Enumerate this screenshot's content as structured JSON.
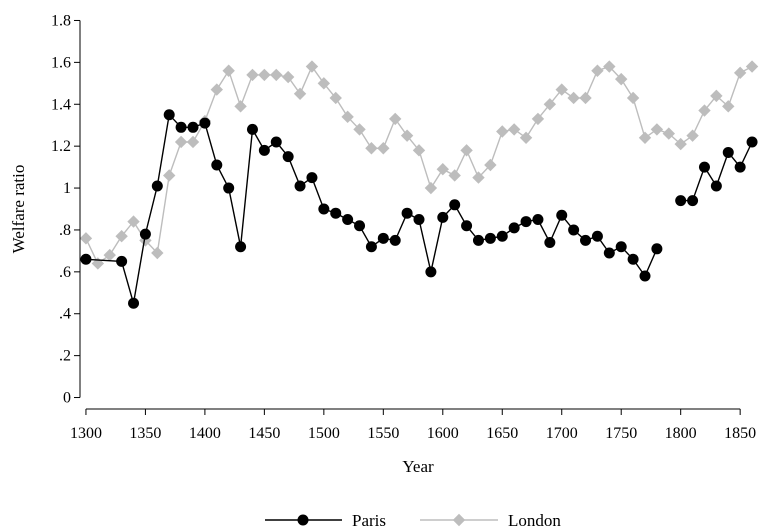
{
  "chart_data": {
    "type": "line",
    "title": "",
    "xlabel": "Year",
    "ylabel": "Welfare ratio",
    "xlim": [
      1295,
      1865
    ],
    "ylim": [
      -0.05,
      1.85
    ],
    "x_ticks": [
      1300,
      1350,
      1400,
      1450,
      1500,
      1550,
      1600,
      1650,
      1700,
      1750,
      1800,
      1850
    ],
    "x_tick_labels": [
      "1300",
      "1350",
      "1400",
      "1450",
      "1500",
      "1550",
      "1600",
      "1650",
      "1700",
      "1750",
      "1800",
      "1850"
    ],
    "y_ticks": [
      0,
      0.2,
      0.4,
      0.6,
      0.8,
      1.0,
      1.2,
      1.4,
      1.6,
      1.8
    ],
    "y_tick_labels": [
      "0",
      ".2",
      ".4",
      ".6",
      ".8",
      "1",
      "1.2",
      "1.4",
      "1.6",
      "1.8"
    ],
    "grid": false,
    "legend_position": "bottom",
    "series": [
      {
        "name": "Paris",
        "color": "#000000",
        "marker": "circle",
        "points": [
          [
            1300,
            0.66
          ],
          [
            1330,
            0.65
          ],
          [
            1340,
            0.45
          ],
          [
            1350,
            0.78
          ],
          [
            1360,
            1.01
          ],
          [
            1370,
            1.35
          ],
          [
            1380,
            1.29
          ],
          [
            1390,
            1.29
          ],
          [
            1400,
            1.31
          ],
          [
            1410,
            1.11
          ],
          [
            1420,
            1.0
          ],
          [
            1430,
            0.72
          ],
          [
            1440,
            1.28
          ],
          [
            1450,
            1.18
          ],
          [
            1460,
            1.22
          ],
          [
            1470,
            1.15
          ],
          [
            1480,
            1.01
          ],
          [
            1490,
            1.05
          ],
          [
            1500,
            0.9
          ],
          [
            1510,
            0.88
          ],
          [
            1520,
            0.85
          ],
          [
            1530,
            0.82
          ],
          [
            1540,
            0.72
          ],
          [
            1550,
            0.76
          ],
          [
            1560,
            0.75
          ],
          [
            1570,
            0.88
          ],
          [
            1580,
            0.85
          ],
          [
            1590,
            0.6
          ],
          [
            1600,
            0.86
          ],
          [
            1610,
            0.92
          ],
          [
            1620,
            0.82
          ],
          [
            1630,
            0.75
          ],
          [
            1640,
            0.76
          ],
          [
            1650,
            0.77
          ],
          [
            1660,
            0.81
          ],
          [
            1670,
            0.84
          ],
          [
            1680,
            0.85
          ],
          [
            1690,
            0.74
          ],
          [
            1700,
            0.87
          ],
          [
            1710,
            0.8
          ],
          [
            1720,
            0.75
          ],
          [
            1730,
            0.77
          ],
          [
            1740,
            0.69
          ],
          [
            1750,
            0.72
          ],
          [
            1760,
            0.66
          ],
          [
            1770,
            0.58
          ],
          [
            1780,
            0.71
          ],
          null,
          [
            1800,
            0.94
          ],
          [
            1810,
            0.94
          ],
          [
            1820,
            1.1
          ],
          [
            1830,
            1.01
          ],
          [
            1840,
            1.17
          ],
          [
            1850,
            1.1
          ],
          [
            1860,
            1.22
          ]
        ]
      },
      {
        "name": "London",
        "color": "#bdbdbd",
        "marker": "diamond",
        "points": [
          [
            1300,
            0.76
          ],
          [
            1310,
            0.64
          ],
          [
            1320,
            0.68
          ],
          [
            1330,
            0.77
          ],
          [
            1340,
            0.84
          ],
          [
            1350,
            0.75
          ],
          [
            1360,
            0.69
          ],
          [
            1370,
            1.06
          ],
          [
            1380,
            1.22
          ],
          [
            1390,
            1.22
          ],
          [
            1400,
            1.32
          ],
          [
            1410,
            1.47
          ],
          [
            1420,
            1.56
          ],
          [
            1430,
            1.39
          ],
          [
            1440,
            1.54
          ],
          [
            1450,
            1.54
          ],
          [
            1460,
            1.54
          ],
          [
            1470,
            1.53
          ],
          [
            1480,
            1.45
          ],
          [
            1490,
            1.58
          ],
          [
            1500,
            1.5
          ],
          [
            1510,
            1.43
          ],
          [
            1520,
            1.34
          ],
          [
            1530,
            1.28
          ],
          [
            1540,
            1.19
          ],
          [
            1550,
            1.19
          ],
          [
            1560,
            1.33
          ],
          [
            1570,
            1.25
          ],
          [
            1580,
            1.18
          ],
          [
            1590,
            1.0
          ],
          [
            1600,
            1.09
          ],
          [
            1610,
            1.06
          ],
          [
            1620,
            1.18
          ],
          [
            1630,
            1.05
          ],
          [
            1640,
            1.11
          ],
          [
            1650,
            1.27
          ],
          [
            1660,
            1.28
          ],
          [
            1670,
            1.24
          ],
          [
            1680,
            1.33
          ],
          [
            1690,
            1.4
          ],
          [
            1700,
            1.47
          ],
          [
            1710,
            1.43
          ],
          [
            1720,
            1.43
          ],
          [
            1730,
            1.56
          ],
          [
            1740,
            1.58
          ],
          [
            1750,
            1.52
          ],
          [
            1760,
            1.43
          ],
          [
            1770,
            1.24
          ],
          [
            1780,
            1.28
          ],
          [
            1790,
            1.26
          ],
          [
            1800,
            1.21
          ],
          [
            1810,
            1.25
          ],
          [
            1820,
            1.37
          ],
          [
            1830,
            1.44
          ],
          [
            1840,
            1.39
          ],
          [
            1850,
            1.55
          ],
          [
            1860,
            1.58
          ]
        ]
      }
    ]
  }
}
